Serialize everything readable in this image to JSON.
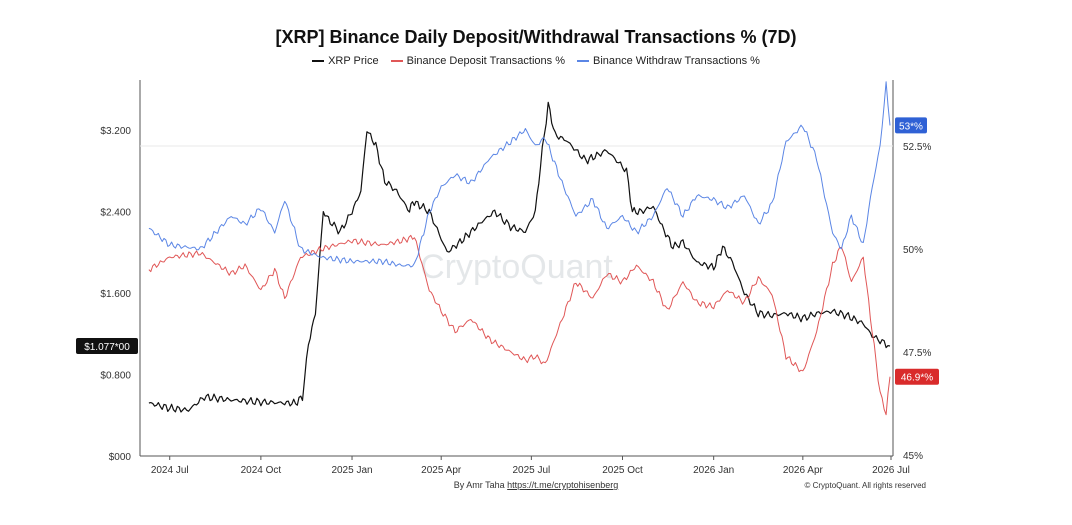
{
  "title": "[XRP] Binance Daily Deposit/Withdrawal Transactions % (7D)",
  "legend": [
    {
      "label": "XRP Price",
      "color": "#111111"
    },
    {
      "label": "Binance Deposit Transactions %",
      "color": "#e05757"
    },
    {
      "label": "Binance Withdraw Transactions %",
      "color": "#5b86e5"
    }
  ],
  "watermark": "CryptoQuant",
  "footer": {
    "author_prefix": "By Amr Taha",
    "author_link": "https://t.me/cryptohisenberg",
    "copyright": "© CryptoQuant. All rights reserved"
  },
  "chart_data": {
    "type": "line",
    "x_ticks": [
      "2024 Jul",
      "2024 Oct",
      "2025 Jan",
      "2025 Apr",
      "2025 Jul",
      "2025 Oct",
      "2026 Jan",
      "2026 Apr",
      "2026 Jul"
    ],
    "x_range": [
      "2024-06-01",
      "2026-07-01"
    ],
    "left_axis": {
      "ticks": [
        "$000",
        "$0.800",
        "$1.600",
        "$2.400",
        "$3.200"
      ],
      "ylim": [
        0,
        3.2
      ]
    },
    "right_axis": {
      "ticks": [
        "45%",
        "47.5%",
        "50%",
        "52.5%"
      ],
      "ylim": [
        45,
        52.5
      ]
    },
    "badges": {
      "price": {
        "text": "$1.077*00",
        "color": "#111111"
      },
      "withdraw": {
        "text": "53*%",
        "color": "#2f61d5"
      },
      "deposit": {
        "text": "46.9*%",
        "color": "#d92b2b"
      }
    },
    "series": [
      {
        "name": "XRP Price",
        "axis": "left",
        "color": "#111111",
        "x": [
          "2024-06-10",
          "2024-07-01",
          "2024-07-20",
          "2024-08-05",
          "2024-09-01",
          "2024-10-01",
          "2024-10-25",
          "2024-11-05",
          "2024-11-12",
          "2024-11-18",
          "2024-11-25",
          "2024-12-03",
          "2024-12-10",
          "2024-12-20",
          "2025-01-01",
          "2025-01-10",
          "2025-01-16",
          "2025-01-25",
          "2025-02-03",
          "2025-02-15",
          "2025-02-28",
          "2025-03-03",
          "2025-03-12",
          "2025-03-20",
          "2025-04-07",
          "2025-04-20",
          "2025-05-01",
          "2025-05-12",
          "2025-05-25",
          "2025-06-10",
          "2025-06-25",
          "2025-07-05",
          "2025-07-12",
          "2025-07-18",
          "2025-07-25",
          "2025-08-05",
          "2025-08-15",
          "2025-08-25",
          "2025-09-05",
          "2025-09-15",
          "2025-09-25",
          "2025-10-05",
          "2025-10-11",
          "2025-10-20",
          "2025-11-01",
          "2025-11-10",
          "2025-11-21",
          "2025-12-01",
          "2025-12-15",
          "2026-01-01",
          "2026-01-10",
          "2026-01-20",
          "2026-02-01",
          "2026-02-15",
          "2026-03-01",
          "2026-03-15",
          "2026-04-01",
          "2026-04-15",
          "2026-05-01",
          "2026-05-15",
          "2026-06-01",
          "2026-06-10",
          "2026-06-20",
          "2026-06-28"
        ],
        "values": [
          0.52,
          0.47,
          0.45,
          0.58,
          0.55,
          0.53,
          0.52,
          0.52,
          0.58,
          1.1,
          1.4,
          2.4,
          2.3,
          2.2,
          2.4,
          2.6,
          3.2,
          3.05,
          2.7,
          2.6,
          2.4,
          2.5,
          2.45,
          2.4,
          2.0,
          2.1,
          2.2,
          2.3,
          2.4,
          2.25,
          2.2,
          2.4,
          3.0,
          3.45,
          3.15,
          3.1,
          3.0,
          2.9,
          2.95,
          3.0,
          2.9,
          2.8,
          2.4,
          2.4,
          2.45,
          2.25,
          2.05,
          2.1,
          1.9,
          1.85,
          2.05,
          1.9,
          1.6,
          1.4,
          1.38,
          1.4,
          1.35,
          1.4,
          1.42,
          1.38,
          1.3,
          1.18,
          1.12,
          1.08
        ]
      },
      {
        "name": "Binance Deposit Transactions %",
        "axis": "right",
        "color": "#e05757",
        "x": [
          "2024-06-10",
          "2024-07-01",
          "2024-08-01",
          "2024-09-01",
          "2024-09-15",
          "2024-10-01",
          "2024-10-15",
          "2024-10-25",
          "2024-11-10",
          "2024-12-01",
          "2025-01-01",
          "2025-02-01",
          "2025-02-20",
          "2025-03-05",
          "2025-03-20",
          "2025-04-01",
          "2025-04-15",
          "2025-05-01",
          "2025-05-20",
          "2025-06-10",
          "2025-06-25",
          "2025-07-05",
          "2025-07-15",
          "2025-08-01",
          "2025-08-15",
          "2025-09-01",
          "2025-09-15",
          "2025-10-01",
          "2025-10-15",
          "2025-11-01",
          "2025-11-15",
          "2025-12-01",
          "2025-12-15",
          "2026-01-01",
          "2026-01-15",
          "2026-02-01",
          "2026-02-15",
          "2026-03-01",
          "2026-03-15",
          "2026-04-01",
          "2026-04-15",
          "2026-05-01",
          "2026-05-10",
          "2026-05-20",
          "2026-06-01",
          "2026-06-10",
          "2026-06-18",
          "2026-06-24",
          "2026-06-28"
        ],
        "values": [
          49.5,
          49.8,
          49.9,
          49.4,
          49.6,
          49.0,
          49.5,
          48.8,
          49.8,
          50.0,
          50.2,
          50.1,
          50.2,
          50.3,
          49.0,
          48.5,
          48.0,
          48.3,
          47.8,
          47.5,
          47.3,
          47.4,
          47.2,
          48.3,
          49.2,
          48.8,
          49.4,
          49.2,
          49.6,
          49.2,
          48.5,
          49.2,
          48.7,
          48.6,
          49.0,
          48.7,
          49.3,
          48.9,
          47.4,
          47.0,
          48.0,
          49.6,
          50.1,
          49.2,
          49.8,
          48.0,
          46.5,
          46.0,
          46.9
        ]
      },
      {
        "name": "Binance Withdraw Transactions %",
        "axis": "right",
        "color": "#5b86e5",
        "x": [
          "2024-06-10",
          "2024-07-01",
          "2024-08-01",
          "2024-09-01",
          "2024-09-15",
          "2024-10-01",
          "2024-10-15",
          "2024-10-25",
          "2024-11-10",
          "2024-12-01",
          "2025-01-01",
          "2025-02-01",
          "2025-02-20",
          "2025-03-05",
          "2025-03-20",
          "2025-04-01",
          "2025-04-15",
          "2025-05-01",
          "2025-05-20",
          "2025-06-10",
          "2025-06-25",
          "2025-07-05",
          "2025-07-15",
          "2025-08-01",
          "2025-08-15",
          "2025-09-01",
          "2025-09-15",
          "2025-10-01",
          "2025-10-15",
          "2025-11-01",
          "2025-11-15",
          "2025-12-01",
          "2025-12-15",
          "2026-01-01",
          "2026-01-15",
          "2026-02-01",
          "2026-02-15",
          "2026-03-01",
          "2026-03-15",
          "2026-04-01",
          "2026-04-15",
          "2026-05-01",
          "2026-05-10",
          "2026-05-20",
          "2026-06-01",
          "2026-06-10",
          "2026-06-18",
          "2026-06-24",
          "2026-06-28"
        ],
        "values": [
          50.5,
          50.1,
          50.0,
          50.8,
          50.6,
          51.0,
          50.4,
          51.2,
          50.0,
          49.8,
          49.7,
          49.7,
          49.6,
          49.6,
          50.9,
          51.5,
          51.8,
          51.6,
          52.2,
          52.6,
          52.9,
          52.5,
          52.7,
          51.6,
          50.8,
          51.2,
          50.5,
          50.8,
          50.4,
          50.8,
          51.5,
          50.8,
          51.3,
          51.2,
          51.0,
          51.3,
          50.6,
          51.1,
          52.6,
          53.0,
          52.2,
          50.4,
          50.0,
          50.8,
          50.1,
          51.5,
          52.5,
          54.0,
          53.0
        ]
      }
    ]
  }
}
